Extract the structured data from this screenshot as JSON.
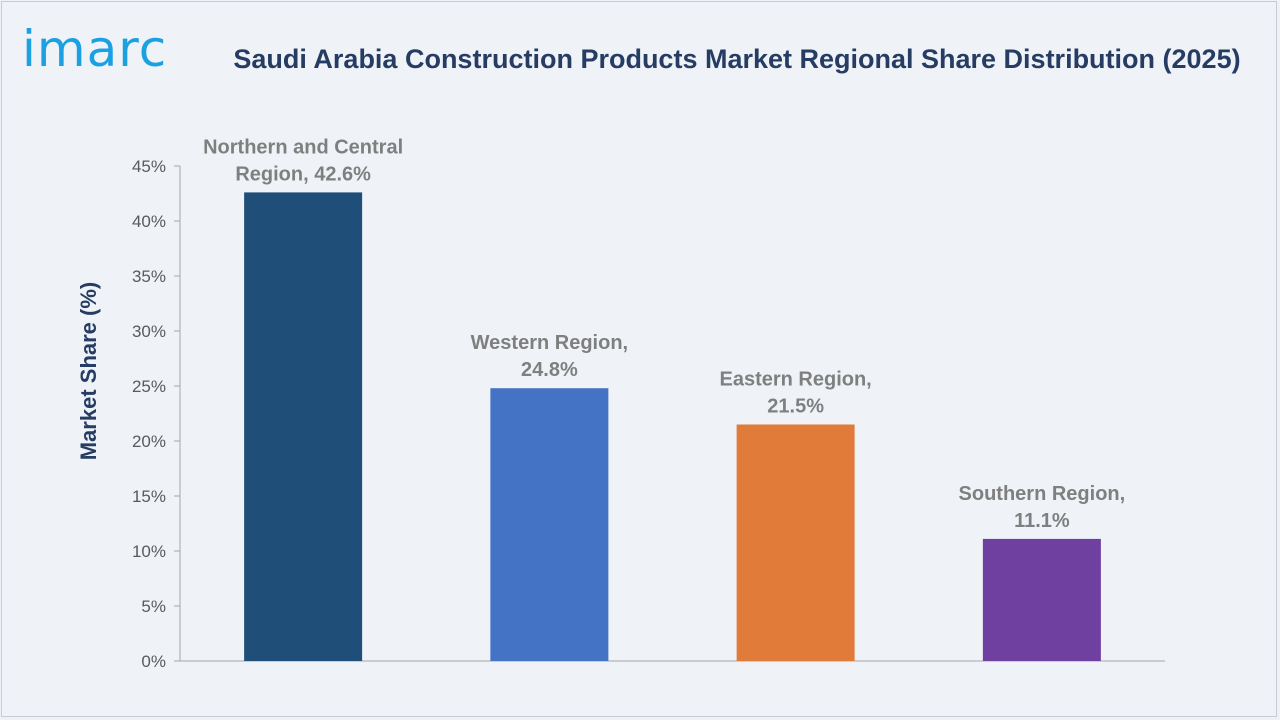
{
  "logo": {
    "text": "imarc",
    "color": "#1ba1e2"
  },
  "title": "Saudi Arabia Construction Products Market Regional Share Distribution (2025)",
  "chart_data": {
    "type": "bar",
    "title": "Saudi Arabia Construction Products Market Regional Share Distribution (2025)",
    "xlabel": "",
    "ylabel": "Market Share (%)",
    "ylim": [
      0,
      45
    ],
    "yticks": [
      0,
      5,
      10,
      15,
      20,
      25,
      30,
      35,
      40,
      45
    ],
    "ytick_labels": [
      "0%",
      "5%",
      "10%",
      "15%",
      "20%",
      "25%",
      "30%",
      "35%",
      "40%",
      "45%"
    ],
    "grid": false,
    "categories": [
      "Northern and Central Region",
      "Western Region",
      "Eastern Region",
      "Southern Region"
    ],
    "values": [
      42.6,
      24.8,
      21.5,
      11.1
    ],
    "data_labels": [
      [
        "Northern and Central",
        "Region, 42.6%"
      ],
      [
        "Western Region,",
        "24.8%"
      ],
      [
        "Eastern Region,",
        "21.5%"
      ],
      [
        "Southern Region,",
        "11.1%"
      ]
    ],
    "colors": [
      "#1f4e79",
      "#4472c4",
      "#e07b39",
      "#7040a0"
    ]
  }
}
